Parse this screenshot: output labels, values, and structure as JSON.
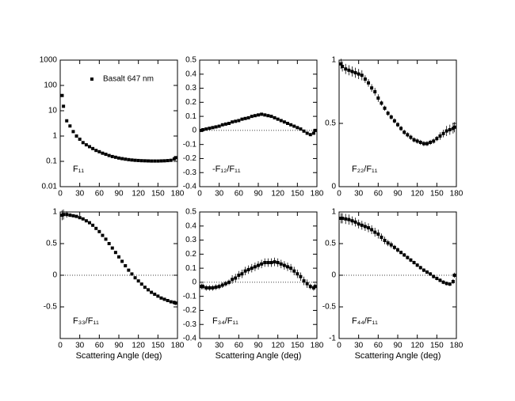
{
  "chart_data": [
    {
      "type": "scatter",
      "label": "F₁₁",
      "log": true,
      "legend": "upper left",
      "xlim": [
        0,
        180
      ],
      "xticks": [
        0,
        30,
        60,
        90,
        120,
        150,
        180
      ],
      "ylim": [
        0.01,
        1000
      ],
      "yticks": [
        0.01,
        0.1,
        1,
        10,
        100,
        1000
      ],
      "x": [
        3,
        5,
        10,
        15,
        20,
        25,
        30,
        35,
        40,
        45,
        50,
        55,
        60,
        65,
        70,
        75,
        80,
        85,
        90,
        95,
        100,
        105,
        110,
        115,
        120,
        125,
        130,
        135,
        140,
        145,
        150,
        155,
        160,
        165,
        170,
        175,
        177
      ],
      "series": [
        {
          "name": "Basalt 647 nm",
          "color": "#000000",
          "values": [
            40,
            15,
            4,
            2.5,
            1.5,
            1.0,
            0.75,
            0.55,
            0.45,
            0.38,
            0.32,
            0.27,
            0.24,
            0.21,
            0.19,
            0.17,
            0.155,
            0.145,
            0.135,
            0.128,
            0.122,
            0.117,
            0.113,
            0.11,
            0.108,
            0.106,
            0.105,
            0.104,
            0.103,
            0.103,
            0.103,
            0.104,
            0.105,
            0.107,
            0.11,
            0.125,
            0.14
          ]
        }
      ]
    },
    {
      "type": "scatter",
      "label": "-F₁₂/F₁₁",
      "zero_line": true,
      "xlim": [
        0,
        180
      ],
      "xticks": [
        0,
        30,
        60,
        90,
        120,
        150,
        180
      ],
      "ylim": [
        -0.4,
        0.5
      ],
      "yticks": [
        -0.4,
        -0.3,
        -0.2,
        -0.1,
        0,
        0.1,
        0.2,
        0.3,
        0.4,
        0.5
      ],
      "x": [
        3,
        5,
        10,
        15,
        20,
        25,
        30,
        35,
        40,
        45,
        50,
        55,
        60,
        65,
        70,
        75,
        80,
        85,
        90,
        95,
        100,
        105,
        110,
        115,
        120,
        125,
        130,
        135,
        140,
        145,
        150,
        155,
        160,
        165,
        170,
        175,
        177
      ],
      "series": [
        {
          "color": "#000000",
          "values": [
            0.0,
            0.005,
            0.01,
            0.015,
            0.02,
            0.025,
            0.03,
            0.04,
            0.045,
            0.05,
            0.06,
            0.065,
            0.07,
            0.08,
            0.085,
            0.09,
            0.1,
            0.105,
            0.11,
            0.115,
            0.11,
            0.105,
            0.1,
            0.09,
            0.08,
            0.07,
            0.06,
            0.05,
            0.04,
            0.03,
            0.02,
            0.01,
            -0.005,
            -0.02,
            -0.03,
            -0.02,
            0.0
          ]
        }
      ]
    },
    {
      "type": "scatter",
      "label": "F₂₂/F₁₁",
      "xlim": [
        0,
        180
      ],
      "xticks": [
        0,
        30,
        60,
        90,
        120,
        150,
        180
      ],
      "ylim": [
        0,
        1
      ],
      "yticks": [
        0,
        0.5,
        1
      ],
      "x": [
        3,
        5,
        10,
        15,
        20,
        25,
        30,
        35,
        40,
        45,
        50,
        55,
        60,
        65,
        70,
        75,
        80,
        85,
        90,
        95,
        100,
        105,
        110,
        115,
        120,
        125,
        130,
        135,
        140,
        145,
        150,
        155,
        160,
        165,
        170,
        175,
        177
      ],
      "series": [
        {
          "color": "#000000",
          "values": [
            0.97,
            0.95,
            0.93,
            0.92,
            0.91,
            0.9,
            0.89,
            0.88,
            0.85,
            0.82,
            0.78,
            0.75,
            0.7,
            0.66,
            0.62,
            0.58,
            0.55,
            0.52,
            0.49,
            0.46,
            0.43,
            0.41,
            0.39,
            0.37,
            0.36,
            0.35,
            0.34,
            0.34,
            0.35,
            0.36,
            0.38,
            0.4,
            0.42,
            0.44,
            0.45,
            0.46,
            0.47
          ],
          "errors": [
            0.04,
            0.04,
            0.04,
            0.04,
            0.04,
            0.04,
            0.04,
            0.04,
            0.03,
            0.03,
            0.03,
            0.03,
            0.03,
            0.02,
            0.02,
            0.02,
            0.02,
            0.02,
            0.02,
            0.02,
            0.02,
            0.02,
            0.02,
            0.02,
            0.02,
            0.02,
            0.02,
            0.02,
            0.02,
            0.02,
            0.02,
            0.03,
            0.03,
            0.04,
            0.04,
            0.04,
            0.04
          ]
        }
      ]
    },
    {
      "type": "scatter",
      "label": "F₃₃/F₁₁",
      "zero_line": true,
      "xlabel": "Scattering Angle (deg)",
      "xlim": [
        0,
        180
      ],
      "xticks": [
        0,
        30,
        60,
        90,
        120,
        150,
        180
      ],
      "ylim": [
        -1,
        1
      ],
      "yticks": [
        -0.5,
        0,
        0.5,
        1
      ],
      "x": [
        3,
        5,
        10,
        15,
        20,
        25,
        30,
        35,
        40,
        45,
        50,
        55,
        60,
        65,
        70,
        75,
        80,
        85,
        90,
        95,
        100,
        105,
        110,
        115,
        120,
        125,
        130,
        135,
        140,
        145,
        150,
        155,
        160,
        165,
        170,
        175,
        177
      ],
      "series": [
        {
          "color": "#000000",
          "values": [
            0.95,
            0.96,
            0.96,
            0.95,
            0.94,
            0.93,
            0.91,
            0.89,
            0.86,
            0.83,
            0.79,
            0.74,
            0.69,
            0.63,
            0.57,
            0.5,
            0.43,
            0.36,
            0.29,
            0.22,
            0.15,
            0.08,
            0.02,
            -0.04,
            -0.09,
            -0.14,
            -0.19,
            -0.23,
            -0.27,
            -0.3,
            -0.33,
            -0.36,
            -0.38,
            -0.4,
            -0.42,
            -0.43,
            -0.44
          ],
          "errors": [
            0.08,
            0.08,
            0.05,
            0.03,
            0.02,
            0.02,
            0.02,
            0.02,
            0.02,
            0.02,
            0.02,
            0.02,
            0.02,
            0.02,
            0.02,
            0.02,
            0.02,
            0.02,
            0.02,
            0.02,
            0.02,
            0.02,
            0.02,
            0.02,
            0.02,
            0.02,
            0.02,
            0.02,
            0.02,
            0.02,
            0.02,
            0.02,
            0.02,
            0.02,
            0.02,
            0.03,
            0.03
          ]
        }
      ]
    },
    {
      "type": "scatter",
      "label": "F₃₄/F₁₁",
      "zero_line": true,
      "xlabel": "Scattering Angle (deg)",
      "xlim": [
        0,
        180
      ],
      "xticks": [
        0,
        30,
        60,
        90,
        120,
        150,
        180
      ],
      "ylim": [
        -0.4,
        0.5
      ],
      "yticks": [
        -0.4,
        -0.3,
        -0.2,
        -0.1,
        0,
        0.1,
        0.2,
        0.3,
        0.4,
        0.5
      ],
      "x": [
        3,
        5,
        10,
        15,
        20,
        25,
        30,
        35,
        40,
        45,
        50,
        55,
        60,
        65,
        70,
        75,
        80,
        85,
        90,
        95,
        100,
        105,
        110,
        115,
        120,
        125,
        130,
        135,
        140,
        145,
        150,
        155,
        160,
        165,
        170,
        175,
        177
      ],
      "series": [
        {
          "color": "#000000",
          "values": [
            -0.03,
            -0.03,
            -0.04,
            -0.04,
            -0.04,
            -0.035,
            -0.03,
            -0.02,
            -0.01,
            0.0,
            0.02,
            0.03,
            0.05,
            0.06,
            0.08,
            0.09,
            0.1,
            0.11,
            0.12,
            0.13,
            0.14,
            0.14,
            0.14,
            0.145,
            0.14,
            0.13,
            0.12,
            0.11,
            0.1,
            0.08,
            0.06,
            0.04,
            0.01,
            -0.01,
            -0.03,
            -0.04,
            -0.03
          ],
          "errors": [
            0.02,
            0.02,
            0.02,
            0.02,
            0.02,
            0.02,
            0.02,
            0.02,
            0.02,
            0.02,
            0.03,
            0.03,
            0.03,
            0.03,
            0.03,
            0.03,
            0.03,
            0.03,
            0.03,
            0.03,
            0.03,
            0.03,
            0.03,
            0.03,
            0.03,
            0.03,
            0.03,
            0.03,
            0.03,
            0.03,
            0.03,
            0.03,
            0.03,
            0.03,
            0.02,
            0.02,
            0.02
          ]
        }
      ]
    },
    {
      "type": "scatter",
      "label": "F₄₄/F₁₁",
      "zero_line": true,
      "xlabel": "Scattering Angle (deg)",
      "xlim": [
        0,
        180
      ],
      "xticks": [
        0,
        30,
        60,
        90,
        120,
        150,
        180
      ],
      "ylim": [
        -1,
        1
      ],
      "yticks": [
        -1,
        -0.5,
        0,
        0.5,
        1
      ],
      "x": [
        3,
        5,
        10,
        15,
        20,
        25,
        30,
        35,
        40,
        45,
        50,
        55,
        60,
        65,
        70,
        75,
        80,
        85,
        90,
        95,
        100,
        105,
        110,
        115,
        120,
        125,
        130,
        135,
        140,
        145,
        150,
        155,
        160,
        165,
        170,
        175,
        177
      ],
      "series": [
        {
          "color": "#000000",
          "values": [
            0.9,
            0.9,
            0.89,
            0.88,
            0.86,
            0.84,
            0.81,
            0.79,
            0.77,
            0.75,
            0.72,
            0.68,
            0.65,
            0.6,
            0.55,
            0.51,
            0.48,
            0.44,
            0.4,
            0.36,
            0.32,
            0.28,
            0.24,
            0.2,
            0.16,
            0.12,
            0.08,
            0.05,
            0.02,
            -0.02,
            -0.05,
            -0.08,
            -0.11,
            -0.13,
            -0.14,
            -0.1,
            0.0
          ],
          "errors": [
            0.08,
            0.08,
            0.08,
            0.08,
            0.07,
            0.07,
            0.07,
            0.07,
            0.07,
            0.07,
            0.07,
            0.07,
            0.07,
            0.06,
            0.06,
            0.05,
            0.05,
            0.04,
            0.04,
            0.03,
            0.03,
            0.03,
            0.03,
            0.03,
            0.03,
            0.03,
            0.03,
            0.03,
            0.03,
            0.03,
            0.03,
            0.03,
            0.03,
            0.03,
            0.03,
            0.04,
            0.04
          ]
        }
      ]
    }
  ]
}
